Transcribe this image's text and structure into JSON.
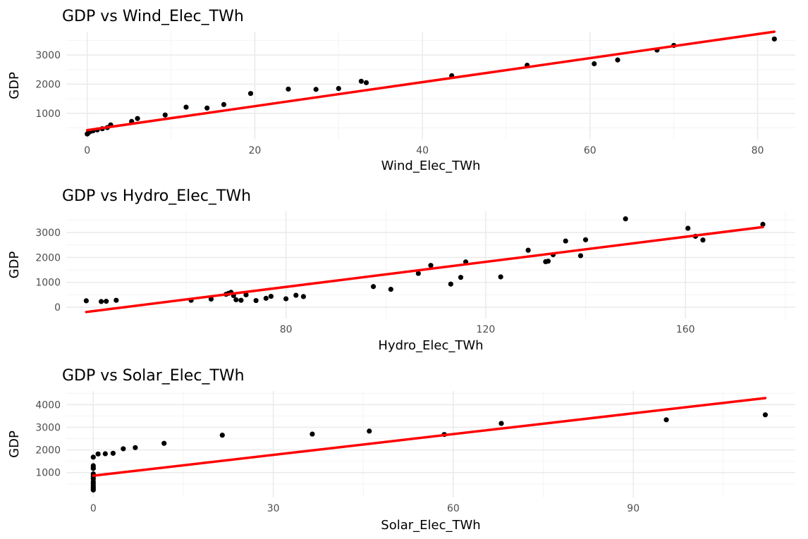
{
  "chart_data": [
    {
      "type": "scatter",
      "title": "GDP vs Wind_Elec_TWh",
      "xlabel": "Wind_Elec_TWh",
      "ylabel": "GDP",
      "xlim": [
        -2.5,
        84.5
      ],
      "ylim": [
        100,
        3800
      ],
      "x_ticks": [
        0,
        20,
        40,
        60,
        80
      ],
      "y_ticks": [
        1000,
        2000,
        3000
      ],
      "grid": true,
      "points": [
        {
          "x": 0.0,
          "y": 290
        },
        {
          "x": 0.1,
          "y": 320
        },
        {
          "x": 0.2,
          "y": 350
        },
        {
          "x": 0.4,
          "y": 380
        },
        {
          "x": 0.7,
          "y": 400
        },
        {
          "x": 1.2,
          "y": 430
        },
        {
          "x": 1.8,
          "y": 470
        },
        {
          "x": 2.4,
          "y": 510
        },
        {
          "x": 2.8,
          "y": 600
        },
        {
          "x": 5.3,
          "y": 720
        },
        {
          "x": 6.0,
          "y": 820
        },
        {
          "x": 9.3,
          "y": 940
        },
        {
          "x": 11.8,
          "y": 1210
        },
        {
          "x": 14.3,
          "y": 1180
        },
        {
          "x": 16.3,
          "y": 1300
        },
        {
          "x": 19.5,
          "y": 1680
        },
        {
          "x": 24.0,
          "y": 1830
        },
        {
          "x": 27.3,
          "y": 1820
        },
        {
          "x": 30.0,
          "y": 1850
        },
        {
          "x": 32.7,
          "y": 2100
        },
        {
          "x": 33.3,
          "y": 2050
        },
        {
          "x": 43.5,
          "y": 2290
        },
        {
          "x": 52.5,
          "y": 2650
        },
        {
          "x": 60.5,
          "y": 2700
        },
        {
          "x": 63.3,
          "y": 2830
        },
        {
          "x": 68.0,
          "y": 3170
        },
        {
          "x": 70.0,
          "y": 3330
        },
        {
          "x": 82.0,
          "y": 3550
        }
      ],
      "fit": {
        "x": [
          0,
          82
        ],
        "y": [
          420,
          3800
        ]
      }
    },
    {
      "type": "scatter",
      "title": "GDP vs Hydro_Elec_TWh",
      "xlabel": "Hydro_Elec_TWh",
      "ylabel": "GDP",
      "xlim": [
        36,
        182
      ],
      "ylim": [
        -450,
        3850
      ],
      "x_ticks": [
        80,
        120,
        160
      ],
      "y_ticks": [
        0,
        1000,
        2000,
        3000
      ],
      "grid": true,
      "points": [
        {
          "x": 40.0,
          "y": 260
        },
        {
          "x": 43.0,
          "y": 230
        },
        {
          "x": 44.0,
          "y": 240
        },
        {
          "x": 46.0,
          "y": 280
        },
        {
          "x": 61.0,
          "y": 280
        },
        {
          "x": 65.0,
          "y": 330
        },
        {
          "x": 68.0,
          "y": 520
        },
        {
          "x": 68.5,
          "y": 560
        },
        {
          "x": 69.0,
          "y": 600
        },
        {
          "x": 69.5,
          "y": 470
        },
        {
          "x": 70.0,
          "y": 300
        },
        {
          "x": 71.0,
          "y": 280
        },
        {
          "x": 72.0,
          "y": 500
        },
        {
          "x": 74.0,
          "y": 270
        },
        {
          "x": 76.0,
          "y": 360
        },
        {
          "x": 77.0,
          "y": 440
        },
        {
          "x": 80.0,
          "y": 340
        },
        {
          "x": 82.0,
          "y": 480
        },
        {
          "x": 83.5,
          "y": 430
        },
        {
          "x": 97.5,
          "y": 830
        },
        {
          "x": 101.0,
          "y": 720
        },
        {
          "x": 106.5,
          "y": 1360
        },
        {
          "x": 109.0,
          "y": 1680
        },
        {
          "x": 113.0,
          "y": 930
        },
        {
          "x": 115.0,
          "y": 1200
        },
        {
          "x": 116.0,
          "y": 1820
        },
        {
          "x": 123.0,
          "y": 1220
        },
        {
          "x": 128.5,
          "y": 2290
        },
        {
          "x": 132.0,
          "y": 1830
        },
        {
          "x": 132.5,
          "y": 1850
        },
        {
          "x": 133.5,
          "y": 2110
        },
        {
          "x": 136.0,
          "y": 2660
        },
        {
          "x": 139.0,
          "y": 2070
        },
        {
          "x": 140.0,
          "y": 2710
        },
        {
          "x": 148.0,
          "y": 3550
        },
        {
          "x": 160.5,
          "y": 3170
        },
        {
          "x": 162.0,
          "y": 2850
        },
        {
          "x": 163.5,
          "y": 2700
        },
        {
          "x": 175.5,
          "y": 3330
        }
      ],
      "fit": {
        "x": [
          40,
          175.5
        ],
        "y": [
          -190,
          3220
        ]
      }
    },
    {
      "type": "scatter",
      "title": "GDP vs Solar_Elec_TWh",
      "xlabel": "Solar_Elec_TWh",
      "ylabel": "GDP",
      "xlim": [
        -4.5,
        117
      ],
      "ylim": [
        -100,
        4600
      ],
      "x_ticks": [
        0,
        30,
        60,
        90
      ],
      "y_ticks": [
        1000,
        2000,
        3000,
        4000
      ],
      "grid": true,
      "points": [
        {
          "x": 0.0,
          "y": 230
        },
        {
          "x": 0.0,
          "y": 290
        },
        {
          "x": 0.0,
          "y": 350
        },
        {
          "x": 0.0,
          "y": 430
        },
        {
          "x": 0.0,
          "y": 520
        },
        {
          "x": 0.0,
          "y": 600
        },
        {
          "x": 0.0,
          "y": 720
        },
        {
          "x": 0.0,
          "y": 830
        },
        {
          "x": 0.0,
          "y": 940
        },
        {
          "x": 0.0,
          "y": 1180
        },
        {
          "x": 0.0,
          "y": 1210
        },
        {
          "x": 0.0,
          "y": 1300
        },
        {
          "x": 0.0,
          "y": 1680
        },
        {
          "x": 0.8,
          "y": 1820
        },
        {
          "x": 2.0,
          "y": 1830
        },
        {
          "x": 3.3,
          "y": 1850
        },
        {
          "x": 5.0,
          "y": 2050
        },
        {
          "x": 7.0,
          "y": 2100
        },
        {
          "x": 11.8,
          "y": 2290
        },
        {
          "x": 21.5,
          "y": 2650
        },
        {
          "x": 36.5,
          "y": 2700
        },
        {
          "x": 46.0,
          "y": 2830
        },
        {
          "x": 58.5,
          "y": 2680
        },
        {
          "x": 68.0,
          "y": 3170
        },
        {
          "x": 95.5,
          "y": 3330
        },
        {
          "x": 112.0,
          "y": 3550
        }
      ],
      "fit": {
        "x": [
          0,
          112
        ],
        "y": [
          860,
          4290
        ]
      }
    }
  ]
}
